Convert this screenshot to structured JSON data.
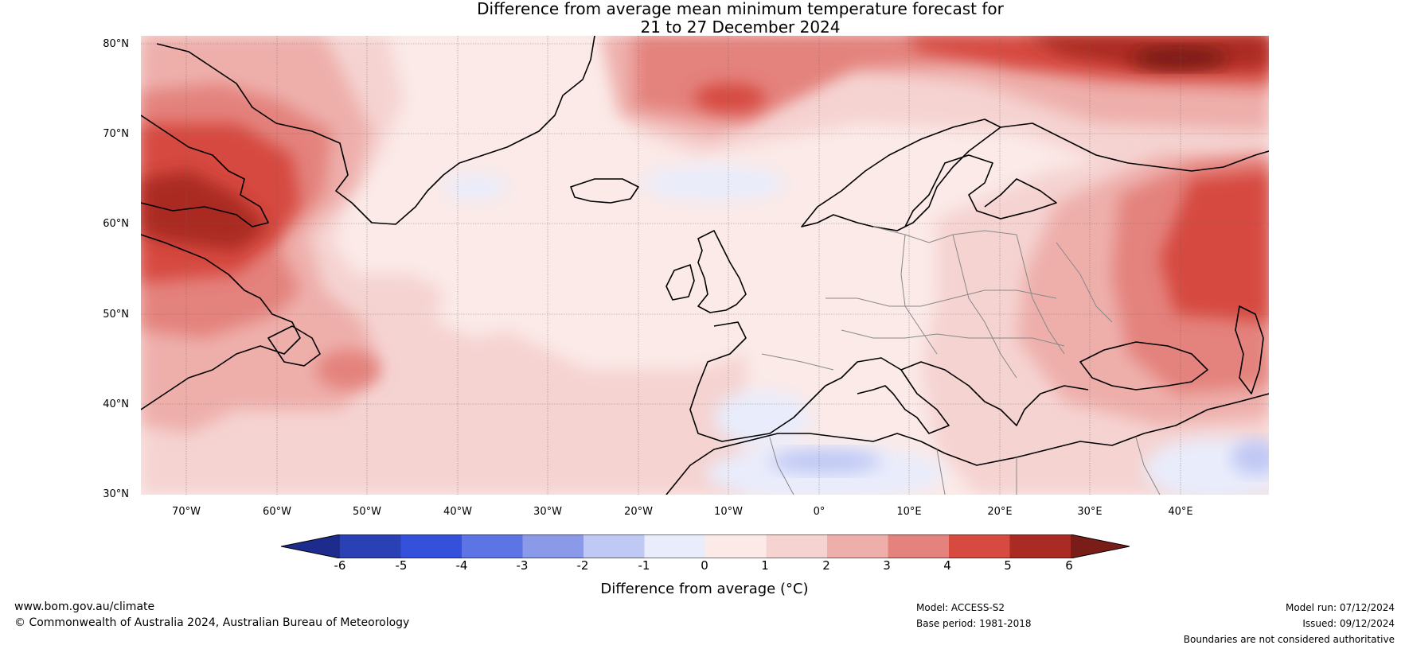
{
  "title": {
    "line1": "Difference from average mean minimum temperature forecast for",
    "line2": "21 to 27 December 2024"
  },
  "map": {
    "lat_labels": [
      "80°N",
      "70°N",
      "60°N",
      "50°N",
      "40°N",
      "30°N"
    ],
    "lon_labels": [
      "70°W",
      "60°W",
      "50°W",
      "40°W",
      "30°W",
      "20°W",
      "10°W",
      "0°",
      "10°E",
      "20°E",
      "30°E",
      "40°E"
    ],
    "lat_range": [
      30,
      81
    ],
    "lon_range": [
      -75,
      50
    ],
    "gridlines": true,
    "projection": "plate carree"
  },
  "colorbar": {
    "ticks": [
      "-6",
      "-5",
      "-4",
      "-3",
      "-2",
      "-1",
      "0",
      "1",
      "2",
      "3",
      "4",
      "5",
      "6"
    ],
    "colors": [
      "#1c2b8c",
      "#2a41b5",
      "#3551dc",
      "#5d74e4",
      "#8a9ae9",
      "#c0c8f4",
      "#e9ecfb",
      "#fbeae8",
      "#f5d3d1",
      "#eeafab",
      "#e4827d",
      "#d64a40",
      "#aa2a24",
      "#7a1c18"
    ],
    "label": "Difference from average (°C)",
    "extend": "both"
  },
  "footer": {
    "website": "www.bom.gov.au/climate",
    "copyright": "© Commonwealth of Australia 2024, Australian Bureau of Meteorology",
    "model": "Model: ACCESS-S2",
    "base_period": "Base period: 1981-2018",
    "model_run": "Model run: 07/12/2024",
    "issued": "Issued: 09/12/2024",
    "disclaimer": "Boundaries are not considered authoritative"
  }
}
